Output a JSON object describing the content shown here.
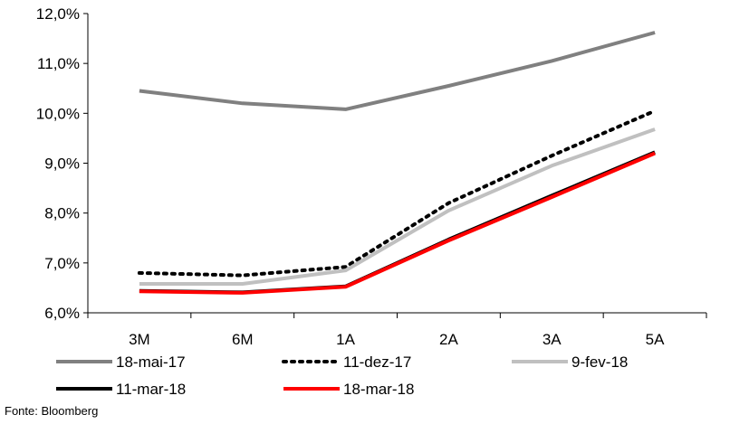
{
  "chart_data": {
    "type": "line",
    "categories": [
      "3M",
      "6M",
      "1A",
      "2A",
      "3A",
      "5A"
    ],
    "ylim": [
      6.0,
      12.0
    ],
    "yticks": [
      6.0,
      7.0,
      8.0,
      9.0,
      10.0,
      11.0,
      12.0
    ],
    "ytick_labels": [
      "6,0%",
      "7,0%",
      "8,0%",
      "9,0%",
      "10,0%",
      "11,0%",
      "12,0%"
    ],
    "grid": false,
    "legend_position": "bottom",
    "series": [
      {
        "name": "18-mai-17",
        "color": "#808080",
        "style": "solid",
        "values": [
          10.45,
          10.2,
          10.08,
          10.55,
          11.05,
          11.62
        ]
      },
      {
        "name": "11-dez-17",
        "color": "#000000",
        "style": "dotted",
        "values": [
          6.8,
          6.75,
          6.92,
          8.2,
          9.15,
          10.05
        ]
      },
      {
        "name": "9-fev-18",
        "color": "#c0c0c0",
        "style": "solid",
        "values": [
          6.58,
          6.58,
          6.85,
          8.05,
          8.95,
          9.68
        ]
      },
      {
        "name": "11-mar-18",
        "color": "#000000",
        "style": "solid",
        "values": [
          6.44,
          6.41,
          6.53,
          7.47,
          8.35,
          9.22
        ]
      },
      {
        "name": "18-mar-18",
        "color": "#ff0000",
        "style": "solid",
        "values": [
          6.43,
          6.4,
          6.52,
          7.45,
          8.32,
          9.2
        ]
      }
    ]
  },
  "source": "Fonte: Bloomberg"
}
